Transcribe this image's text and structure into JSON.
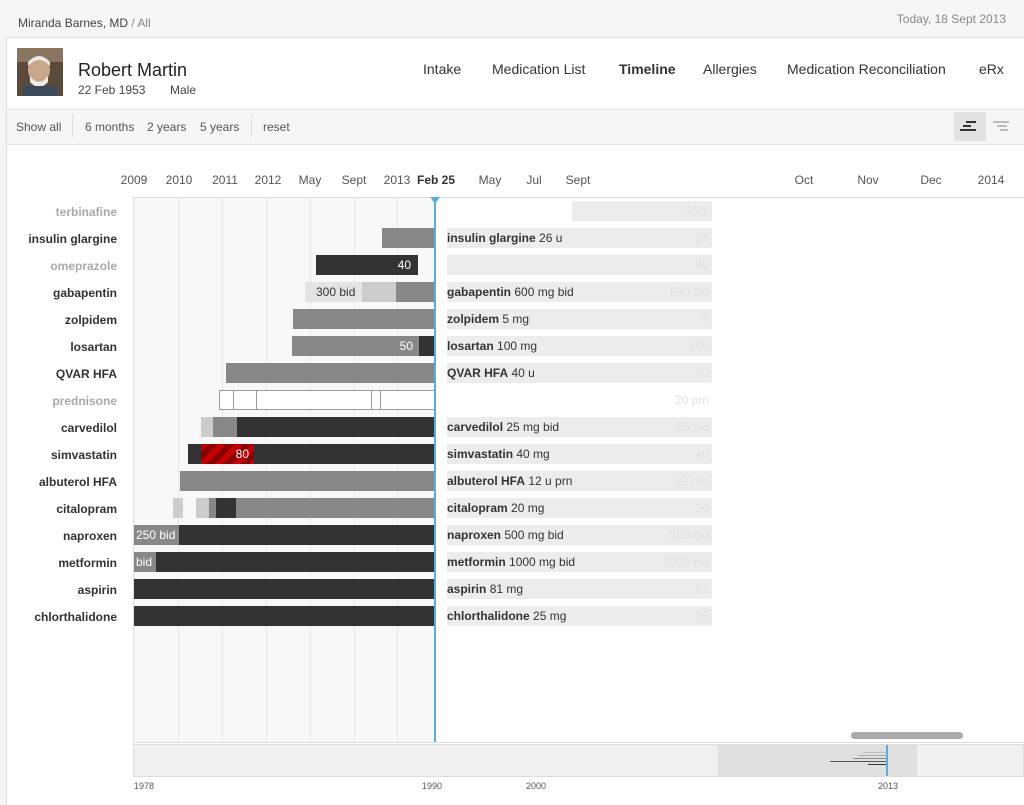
{
  "header": {
    "breadcrumb_user": "Miranda Barnes, MD",
    "breadcrumb_sep": "/",
    "breadcrumb_scope": "All",
    "today": "Today, 18 Sept  2013"
  },
  "patient": {
    "name": "Robert Martin",
    "dob": "22 Feb 1953",
    "sex": "Male"
  },
  "nav": [
    {
      "label": "Intake",
      "active": false
    },
    {
      "label": "Medication List",
      "active": false
    },
    {
      "label": "Timeline",
      "active": true
    },
    {
      "label": "Allergies",
      "active": false
    },
    {
      "label": "Medication Reconciliation",
      "active": false
    },
    {
      "label": "eRx",
      "active": false
    }
  ],
  "filters": {
    "show_all": "Show all",
    "m6": "6 months",
    "y2": "2 years",
    "y5": "5 years",
    "reset": "reset"
  },
  "axis_ticks": [
    "2009",
    "2010",
    "2011",
    "2012",
    "May",
    "Sept",
    "2013",
    "Feb 25",
    "May",
    "Jul",
    "Sept",
    "Oct",
    "Nov",
    "Dec",
    "2014"
  ],
  "colors": {
    "today_line": "#5aaedb",
    "active_bar": "#333333",
    "past_bar": "#888888",
    "alert_bar": "#c40000"
  },
  "medications": [
    {
      "name": "terbinafine",
      "active": false,
      "current_name": "",
      "current_detail": "",
      "current_dose": "250",
      "hist_label": ""
    },
    {
      "name": "insulin glargine",
      "active": true,
      "current_name": "insulin glargine",
      "current_detail": "26 u",
      "current_dose": "26",
      "hist_label": ""
    },
    {
      "name": "omeprazole",
      "active": false,
      "current_name": "",
      "current_detail": "",
      "current_dose": "40",
      "hist_label": "40"
    },
    {
      "name": "gabapentin",
      "active": true,
      "current_name": "gabapentin",
      "current_detail": "600 mg bid",
      "current_dose": "600 bid",
      "hist_label": "300 bid"
    },
    {
      "name": "zolpidem",
      "active": true,
      "current_name": "zolpidem",
      "current_detail": "5 mg",
      "current_dose": "5",
      "hist_label": ""
    },
    {
      "name": "losartan",
      "active": true,
      "current_name": "losartan",
      "current_detail": " 100 mg",
      "current_dose": "100",
      "hist_label": "50"
    },
    {
      "name": "QVAR HFA",
      "active": true,
      "current_name": "QVAR HFA",
      "current_detail": "40 u",
      "current_dose": "40",
      "hist_label": ""
    },
    {
      "name": "prednisone",
      "active": false,
      "current_name": "",
      "current_detail": "",
      "current_dose": "20 prn",
      "hist_label": ""
    },
    {
      "name": "carvedilol",
      "active": true,
      "current_name": "carvedilol",
      "current_detail": "25 mg bid",
      "current_dose": "25 bid",
      "hist_label": ""
    },
    {
      "name": "simvastatin",
      "active": true,
      "current_name": "simvastatin",
      "current_detail": "40 mg",
      "current_dose": "40",
      "hist_label": "80"
    },
    {
      "name": "albuterol HFA",
      "active": true,
      "current_name": "albuterol HFA",
      "current_detail": " 12 u prn",
      "current_dose": "12 prn",
      "hist_label": ""
    },
    {
      "name": "citalopram",
      "active": true,
      "current_name": "citalopram",
      "current_detail": "20 mg",
      "current_dose": "20",
      "hist_label": ""
    },
    {
      "name": "naproxen",
      "active": true,
      "current_name": "naproxen",
      "current_detail": "500 mg bid",
      "current_dose": "500 bid",
      "hist_label": "250 bid"
    },
    {
      "name": "metformin",
      "active": true,
      "current_name": "metformin",
      "current_detail": "1000 mg bid",
      "current_dose": "1000 bid",
      "hist_label": "bid"
    },
    {
      "name": "aspirin",
      "active": true,
      "current_name": "aspirin",
      "current_detail": "81 mg",
      "current_dose": "81",
      "hist_label": ""
    },
    {
      "name": "chlorthalidone",
      "active": true,
      "current_name": "chlorthalidone",
      "current_detail": "25 mg",
      "current_dose": "25",
      "hist_label": ""
    }
  ],
  "overview_ticks": [
    "1978",
    "1990",
    "2000",
    "2013"
  ]
}
